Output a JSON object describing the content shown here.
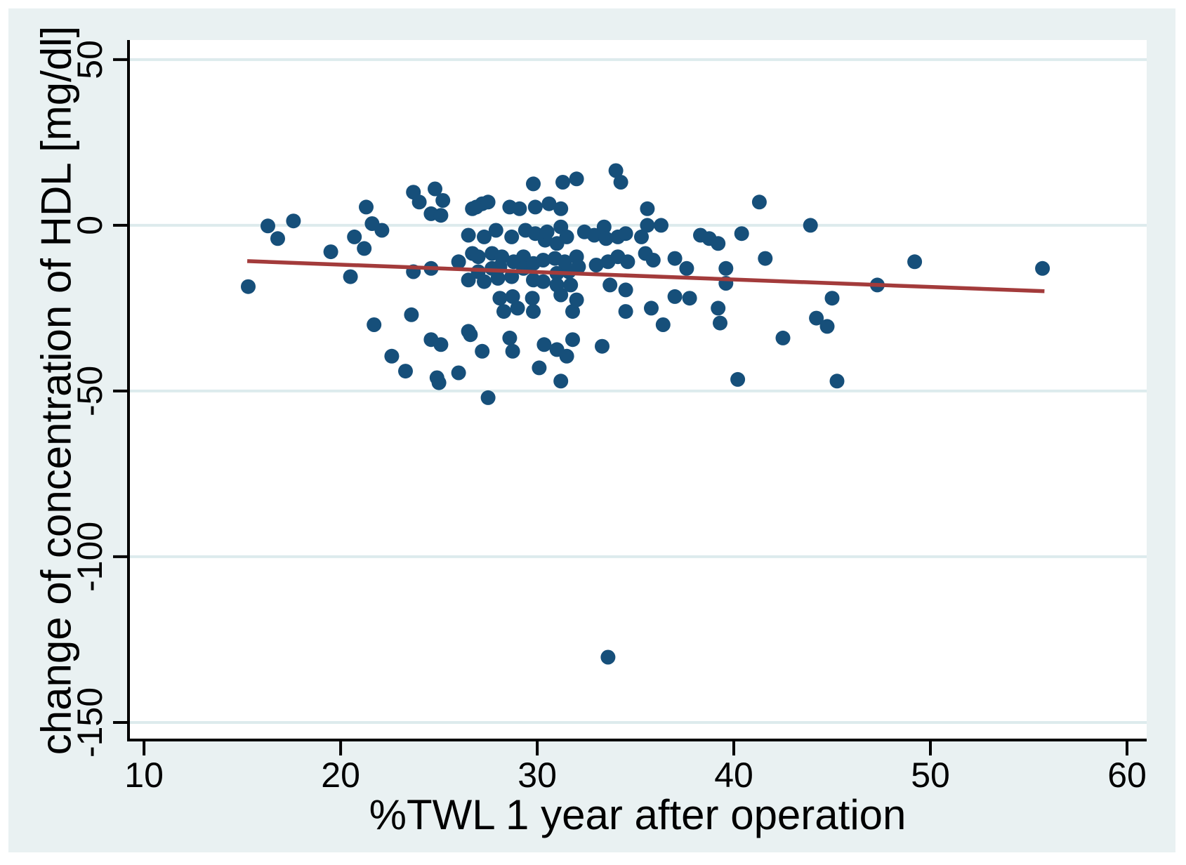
{
  "figure": {
    "x_axis_title": "%TWL 1 year after operation",
    "y_axis_title": "change of concentration of HDL [mg/dl]"
  },
  "chart_data": {
    "type": "scatter",
    "title": "",
    "xlabel": "%TWL 1 year after operation",
    "ylabel": "change of concentration of HDL [mg/dl]",
    "xlim": [
      9.21,
      61.0
    ],
    "ylim": [
      -155.3,
      55.9
    ],
    "x_ticks": [
      10,
      20,
      30,
      40,
      50,
      60
    ],
    "y_ticks": [
      50,
      0,
      -50,
      -100,
      -150
    ],
    "grid": "horizontal",
    "legend": "none",
    "colors": {
      "point": "#164f7a",
      "trend": "#a33b3b",
      "panel": "#e9f1f2",
      "grid": "#ddebed",
      "axis": "#000000",
      "plot_bg": "#ffffff"
    },
    "trendline": {
      "x1": 15.25,
      "y1": -10.8,
      "x2": 55.8,
      "y2": -19.9
    },
    "points": [
      [
        15.3,
        -18.5
      ],
      [
        16.3,
        -0.2
      ],
      [
        16.8,
        -4
      ],
      [
        17.6,
        1.3
      ],
      [
        19.5,
        -8
      ],
      [
        20.5,
        -15.5
      ],
      [
        20.7,
        -3.5
      ],
      [
        21.2,
        -7
      ],
      [
        21.3,
        5.5
      ],
      [
        21.6,
        0.5
      ],
      [
        22.1,
        -1.5
      ],
      [
        21.7,
        -30
      ],
      [
        22.6,
        -39.5
      ],
      [
        23.3,
        -44
      ],
      [
        23.6,
        -27
      ],
      [
        23.7,
        10
      ],
      [
        24,
        7
      ],
      [
        23.7,
        -14
      ],
      [
        24.6,
        -13
      ],
      [
        24.6,
        3.5
      ],
      [
        24.6,
        -34.5
      ],
      [
        24.8,
        11
      ],
      [
        24.9,
        -46
      ],
      [
        25,
        -47.5
      ],
      [
        25.1,
        3
      ],
      [
        25.1,
        -36
      ],
      [
        25.2,
        7.5
      ],
      [
        26,
        -11
      ],
      [
        26,
        -44.5
      ],
      [
        26.5,
        -3
      ],
      [
        26.5,
        -16.5
      ],
      [
        26.5,
        -32
      ],
      [
        26.6,
        -33
      ],
      [
        26.7,
        5
      ],
      [
        26.7,
        -8.5
      ],
      [
        26.9,
        5.5
      ],
      [
        27,
        -9.5
      ],
      [
        27,
        -14
      ],
      [
        27.2,
        6.5
      ],
      [
        27.2,
        -38
      ],
      [
        27.3,
        -3.5
      ],
      [
        27.3,
        -17
      ],
      [
        27.5,
        7
      ],
      [
        27.5,
        -52
      ],
      [
        27.7,
        -8.5
      ],
      [
        27.7,
        -13
      ],
      [
        27.9,
        -1.5
      ],
      [
        28,
        -16
      ],
      [
        28.1,
        -12.5
      ],
      [
        28.1,
        -22
      ],
      [
        28.2,
        -9.5
      ],
      [
        28.3,
        -26
      ],
      [
        28.6,
        5.5
      ],
      [
        28.6,
        -34
      ],
      [
        28.7,
        -3.5
      ],
      [
        28.7,
        -15.5
      ],
      [
        28.75,
        -21.5
      ],
      [
        28.75,
        -38
      ],
      [
        28.8,
        -11
      ],
      [
        29,
        -25
      ],
      [
        29.1,
        5
      ],
      [
        29.3,
        -9.5
      ],
      [
        29.3,
        -13
      ],
      [
        29.4,
        -1.5
      ],
      [
        29.75,
        -22
      ],
      [
        29.8,
        12.5
      ],
      [
        29.8,
        -11.5
      ],
      [
        29.8,
        -16.5
      ],
      [
        29.8,
        -26
      ],
      [
        29.9,
        5.5
      ],
      [
        29.9,
        -2.5
      ],
      [
        30.1,
        -43
      ],
      [
        30.3,
        -10.5
      ],
      [
        30.3,
        -17
      ],
      [
        30.35,
        -36
      ],
      [
        30.4,
        -4.5
      ],
      [
        30.5,
        -2
      ],
      [
        30.6,
        6.5
      ],
      [
        30.9,
        -10
      ],
      [
        31,
        -5.5
      ],
      [
        31,
        -14.5
      ],
      [
        31,
        -18
      ],
      [
        31,
        -37.5
      ],
      [
        31.2,
        5
      ],
      [
        31.2,
        -0.5
      ],
      [
        31.2,
        -21
      ],
      [
        31.2,
        -47
      ],
      [
        31.3,
        13
      ],
      [
        31.4,
        -11
      ],
      [
        31.5,
        -3.5
      ],
      [
        31.5,
        -39.5
      ],
      [
        31.6,
        -14
      ],
      [
        31.7,
        -18
      ],
      [
        31.8,
        -26
      ],
      [
        31.8,
        -34.5
      ],
      [
        32,
        14
      ],
      [
        32,
        -9.5
      ],
      [
        32,
        -22.5
      ],
      [
        32.1,
        -12.5
      ],
      [
        32.4,
        -2
      ],
      [
        32.9,
        -3
      ],
      [
        33,
        -12
      ],
      [
        33.3,
        -36.5
      ],
      [
        33.4,
        -0.5
      ],
      [
        33.5,
        -4
      ],
      [
        33.6,
        -11
      ],
      [
        33.7,
        -18
      ],
      [
        34,
        16.5
      ],
      [
        34.25,
        13
      ],
      [
        34.1,
        -3.5
      ],
      [
        34.1,
        -9.5
      ],
      [
        34.5,
        -2.5
      ],
      [
        34.5,
        -19.5
      ],
      [
        34.5,
        -26
      ],
      [
        34.6,
        -11
      ],
      [
        35.3,
        -3.5
      ],
      [
        35.5,
        -8.5
      ],
      [
        35.6,
        5
      ],
      [
        35.6,
        0
      ],
      [
        35.8,
        -25
      ],
      [
        35.9,
        -10.5
      ],
      [
        36.3,
        0
      ],
      [
        36.4,
        -30
      ],
      [
        37,
        -10
      ],
      [
        37,
        -21.5
      ],
      [
        37.6,
        -13
      ],
      [
        37.75,
        -22
      ],
      [
        38.3,
        -3
      ],
      [
        38.75,
        -4
      ],
      [
        39.2,
        -5.5
      ],
      [
        39.2,
        -25
      ],
      [
        39.3,
        -29.5
      ],
      [
        39.6,
        -13
      ],
      [
        39.6,
        -17.5
      ],
      [
        40.2,
        -46.5
      ],
      [
        40.4,
        -2.5
      ],
      [
        41.3,
        7
      ],
      [
        41.6,
        -10
      ],
      [
        42.5,
        -34
      ],
      [
        43.9,
        0
      ],
      [
        44.2,
        -28
      ],
      [
        44.75,
        -30.5
      ],
      [
        45,
        -22
      ],
      [
        45.25,
        -47
      ],
      [
        47.3,
        -18
      ],
      [
        49.2,
        -11
      ],
      [
        55.7,
        -13
      ],
      [
        33.6,
        -130.3
      ]
    ]
  }
}
